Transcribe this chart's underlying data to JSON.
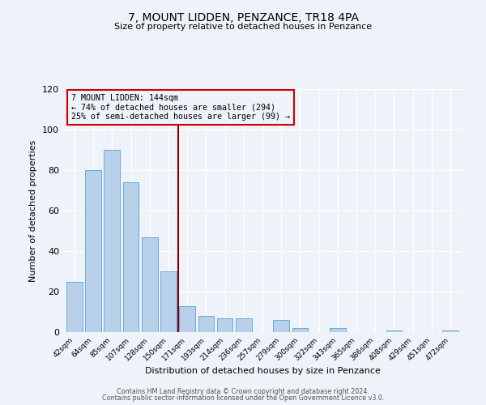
{
  "title": "7, MOUNT LIDDEN, PENZANCE, TR18 4PA",
  "subtitle": "Size of property relative to detached houses in Penzance",
  "xlabel": "Distribution of detached houses by size in Penzance",
  "ylabel": "Number of detached properties",
  "bar_labels": [
    "42sqm",
    "64sqm",
    "85sqm",
    "107sqm",
    "128sqm",
    "150sqm",
    "171sqm",
    "193sqm",
    "214sqm",
    "236sqm",
    "257sqm",
    "279sqm",
    "300sqm",
    "322sqm",
    "343sqm",
    "365sqm",
    "386sqm",
    "408sqm",
    "429sqm",
    "451sqm",
    "472sqm"
  ],
  "bar_values": [
    25,
    80,
    90,
    74,
    47,
    30,
    13,
    8,
    7,
    7,
    0,
    6,
    2,
    0,
    2,
    0,
    0,
    1,
    0,
    0,
    1
  ],
  "bar_color": "#b8d0ea",
  "bar_edge_color": "#6aaad4",
  "vline_x": 5.5,
  "vline_color": "#8b0000",
  "annotation_title": "7 MOUNT LIDDEN: 144sqm",
  "annotation_line1": "← 74% of detached houses are smaller (294)",
  "annotation_line2": "25% of semi-detached houses are larger (99) →",
  "annotation_box_edge": "#cc0000",
  "ylim": [
    0,
    120
  ],
  "yticks": [
    0,
    20,
    40,
    60,
    80,
    100,
    120
  ],
  "background_color": "#eef2f9",
  "footer_line1": "Contains HM Land Registry data © Crown copyright and database right 2024.",
  "footer_line2": "Contains public sector information licensed under the Open Government Licence v3.0."
}
